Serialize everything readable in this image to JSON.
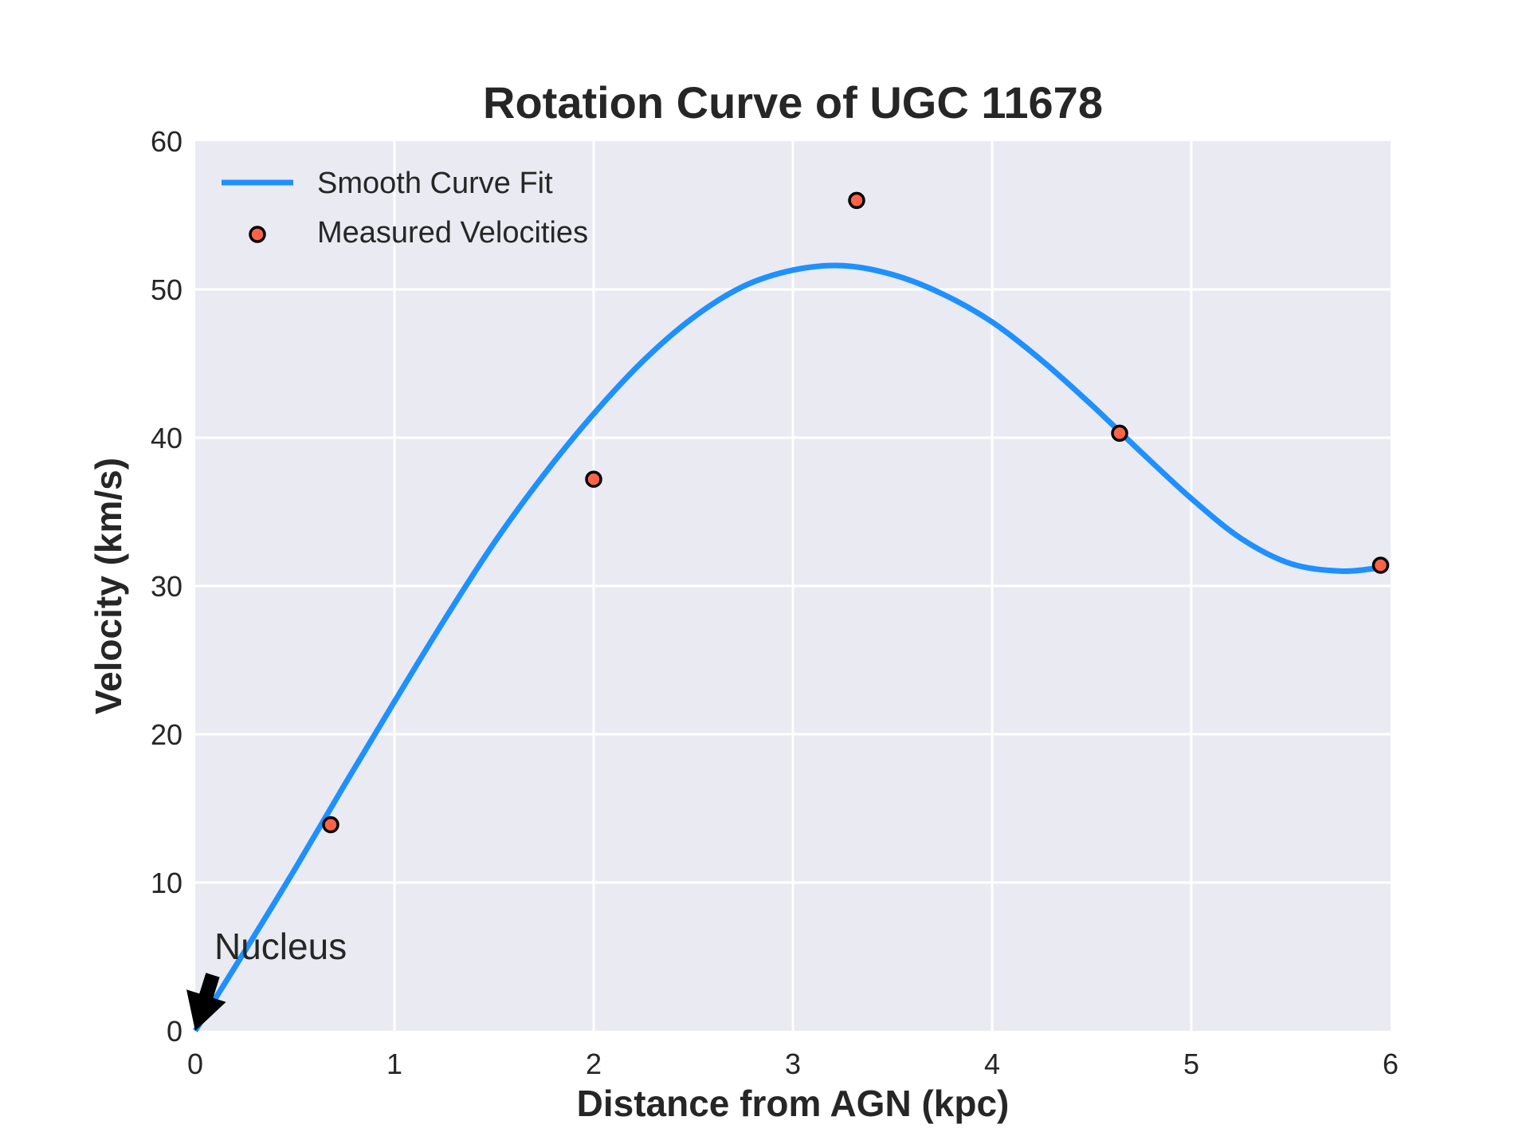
{
  "chart_data": {
    "type": "line",
    "title": "Rotation Curve of UGC 11678",
    "xlabel": "Distance from AGN (kpc)",
    "ylabel": "Velocity (km/s)",
    "xlim": [
      0,
      6
    ],
    "ylim": [
      0,
      60
    ],
    "xticks": [
      0,
      1,
      2,
      3,
      4,
      5,
      6
    ],
    "yticks": [
      0,
      10,
      20,
      30,
      40,
      50,
      60
    ],
    "grid": true,
    "legend_position": "top-left",
    "background_color": "#eaeaf2",
    "series": [
      {
        "name": "Smooth Curve Fit",
        "kind": "line",
        "color": "#1e90ff",
        "x": [
          0,
          0.25,
          0.5,
          0.75,
          1.0,
          1.25,
          1.5,
          1.75,
          2.0,
          2.25,
          2.5,
          2.75,
          3.0,
          3.25,
          3.5,
          3.75,
          4.0,
          4.25,
          4.5,
          4.75,
          5.0,
          5.25,
          5.5,
          5.75,
          5.93
        ],
        "y": [
          0,
          5.4,
          10.9,
          16.6,
          22.2,
          27.7,
          32.9,
          37.5,
          41.6,
          45.2,
          48.1,
          50.2,
          51.3,
          51.6,
          51.0,
          49.7,
          47.8,
          45.2,
          42.2,
          39.0,
          35.9,
          33.2,
          31.5,
          31.0,
          31.2
        ]
      },
      {
        "name": "Measured Velocities",
        "kind": "scatter",
        "color": "#ff6347",
        "edge_color": "#000000",
        "x": [
          0.68,
          2.0,
          3.32,
          4.64,
          5.95
        ],
        "y": [
          13.9,
          37.2,
          56.0,
          40.3,
          31.4
        ]
      }
    ],
    "annotations": [
      {
        "text": "Nucleus",
        "x": 0,
        "y": 0,
        "arrow": true
      }
    ]
  }
}
